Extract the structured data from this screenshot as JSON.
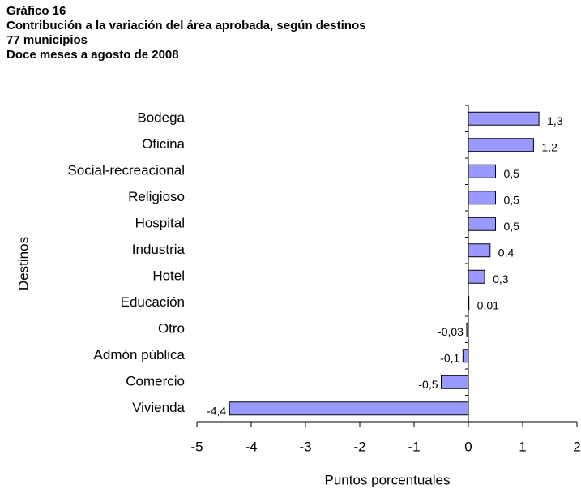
{
  "chart_data": {
    "type": "hbar",
    "title_lines": [
      "Gráfico 16",
      "Contribución a la variación del área aprobada, según destinos",
      "77 municipios",
      "Doce meses a agosto de 2008"
    ],
    "xlabel": "Puntos porcentuales",
    "ylabel": "Destinos",
    "categories": [
      "Bodega",
      "Oficina",
      "Social-recreacional",
      "Religioso",
      "Hospital",
      "Industria",
      "Hotel",
      "Educación",
      "Otro",
      "Admón pública",
      "Comercio",
      "Vivienda"
    ],
    "values": [
      1.3,
      1.2,
      0.5,
      0.5,
      0.5,
      0.4,
      0.3,
      0.01,
      -0.03,
      -0.1,
      -0.5,
      -4.4
    ],
    "value_labels": [
      "1,3",
      "1,2",
      "0,5",
      "0,5",
      "0,5",
      "0,4",
      "0,3",
      "0,01",
      "-0,03",
      "-0,1",
      "-0,5",
      "-4,4"
    ],
    "color": "#9999ff",
    "xlim": [
      -5,
      2
    ],
    "xticks": [
      -5,
      -4,
      -3,
      -2,
      -1,
      0,
      1,
      2
    ]
  }
}
